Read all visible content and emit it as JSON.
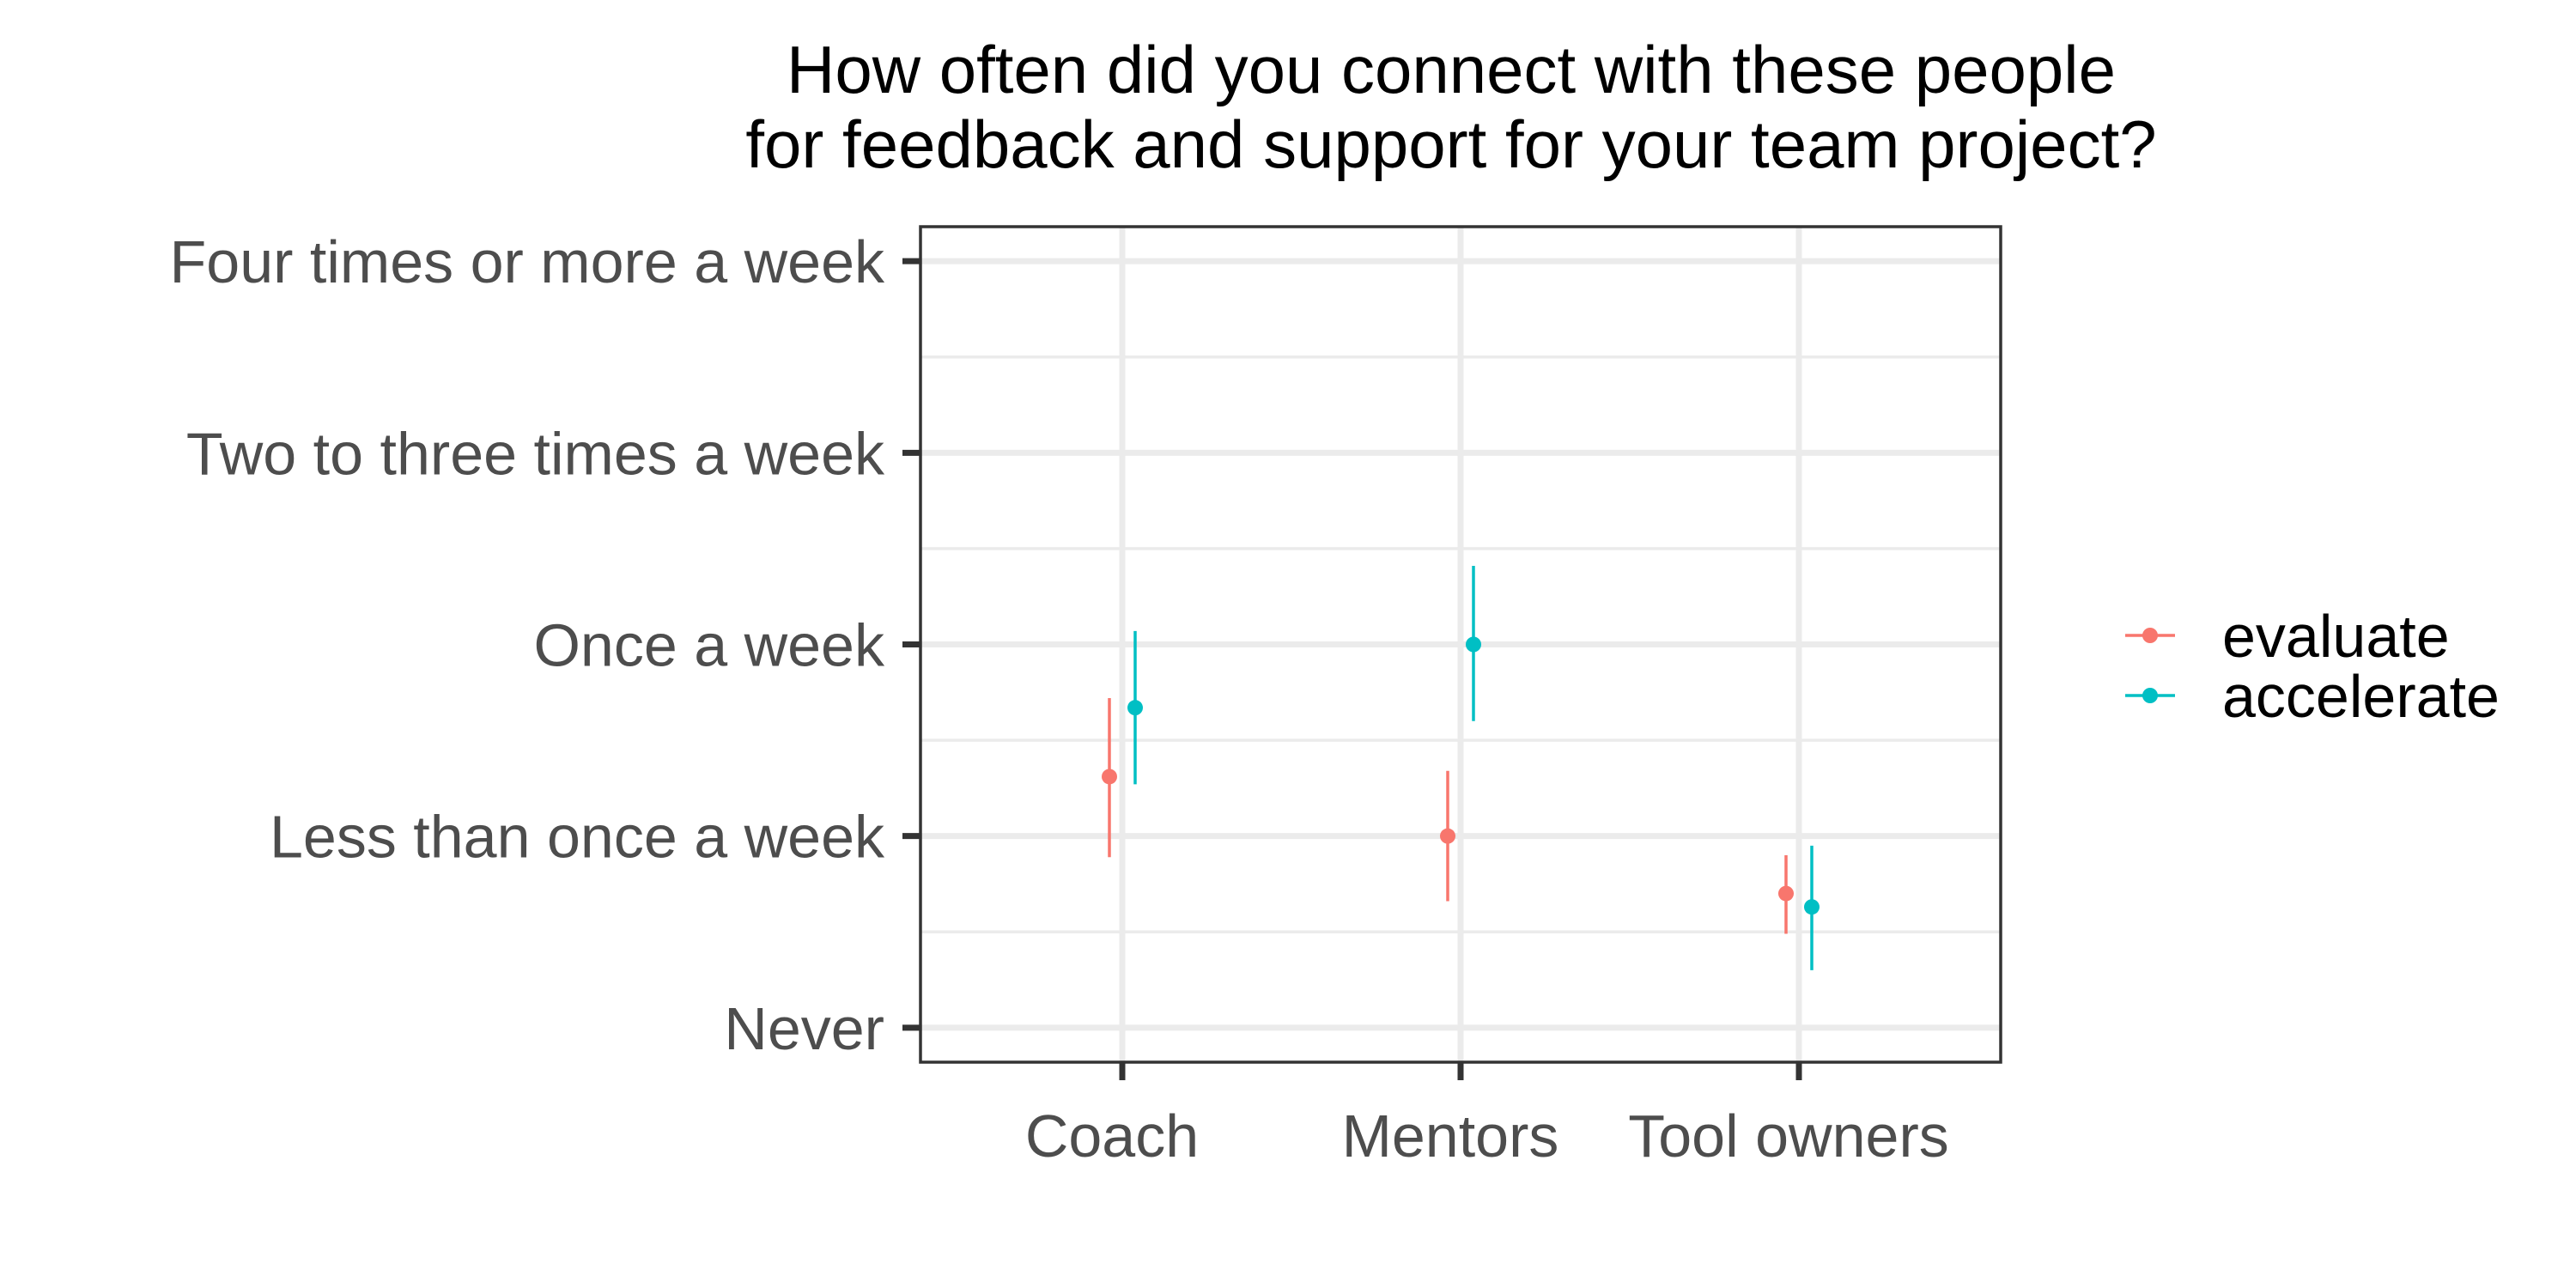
{
  "chart_data": {
    "type": "scatter",
    "title": [
      "How often did you connect with these people",
      "for feedback and support for your team project?"
    ],
    "xlabel": "",
    "ylabel": "",
    "categories": [
      "Coach",
      "Mentors",
      "Tool owners"
    ],
    "y_levels": [
      "Never",
      "Less than once a week",
      "Once a week",
      "Two to three times a week",
      "Four times or more a week"
    ],
    "ylim": [
      0.82,
      5.18
    ],
    "grid": true,
    "legend_position": "right",
    "series": [
      {
        "name": "evaluate",
        "color": "#F8766D",
        "points": [
          {
            "category": "Coach",
            "mean": 2.31,
            "low": 1.89,
            "high": 2.72
          },
          {
            "category": "Mentors",
            "mean": 2.0,
            "low": 1.66,
            "high": 2.34
          },
          {
            "category": "Tool owners",
            "mean": 1.7,
            "low": 1.49,
            "high": 1.9
          }
        ]
      },
      {
        "name": "accelerate",
        "color": "#00BFC4",
        "points": [
          {
            "category": "Coach",
            "mean": 2.67,
            "low": 2.27,
            "high": 3.07
          },
          {
            "category": "Mentors",
            "mean": 3.0,
            "low": 2.6,
            "high": 3.41
          },
          {
            "category": "Tool owners",
            "mean": 1.63,
            "low": 1.3,
            "high": 1.95
          }
        ]
      }
    ]
  }
}
